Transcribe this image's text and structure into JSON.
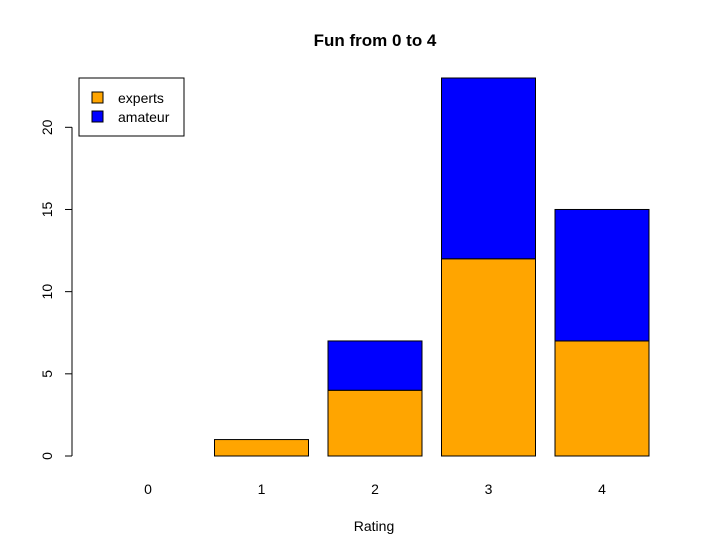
{
  "chart_data": {
    "type": "bar",
    "stacked": true,
    "title": "Fun from 0 to 4",
    "xlabel": "Rating",
    "ylabel": "",
    "categories": [
      "0",
      "1",
      "2",
      "3",
      "4"
    ],
    "series": [
      {
        "name": "experts",
        "values": [
          0,
          1,
          4,
          12,
          7
        ],
        "color": "#FFA500"
      },
      {
        "name": "amateur",
        "values": [
          0,
          0,
          3,
          11,
          8
        ],
        "color": "#0000FF"
      }
    ],
    "ylim": [
      0,
      23
    ],
    "yticks": [
      0,
      5,
      10,
      15,
      20
    ],
    "grid": false,
    "legend_position": "top-left"
  }
}
